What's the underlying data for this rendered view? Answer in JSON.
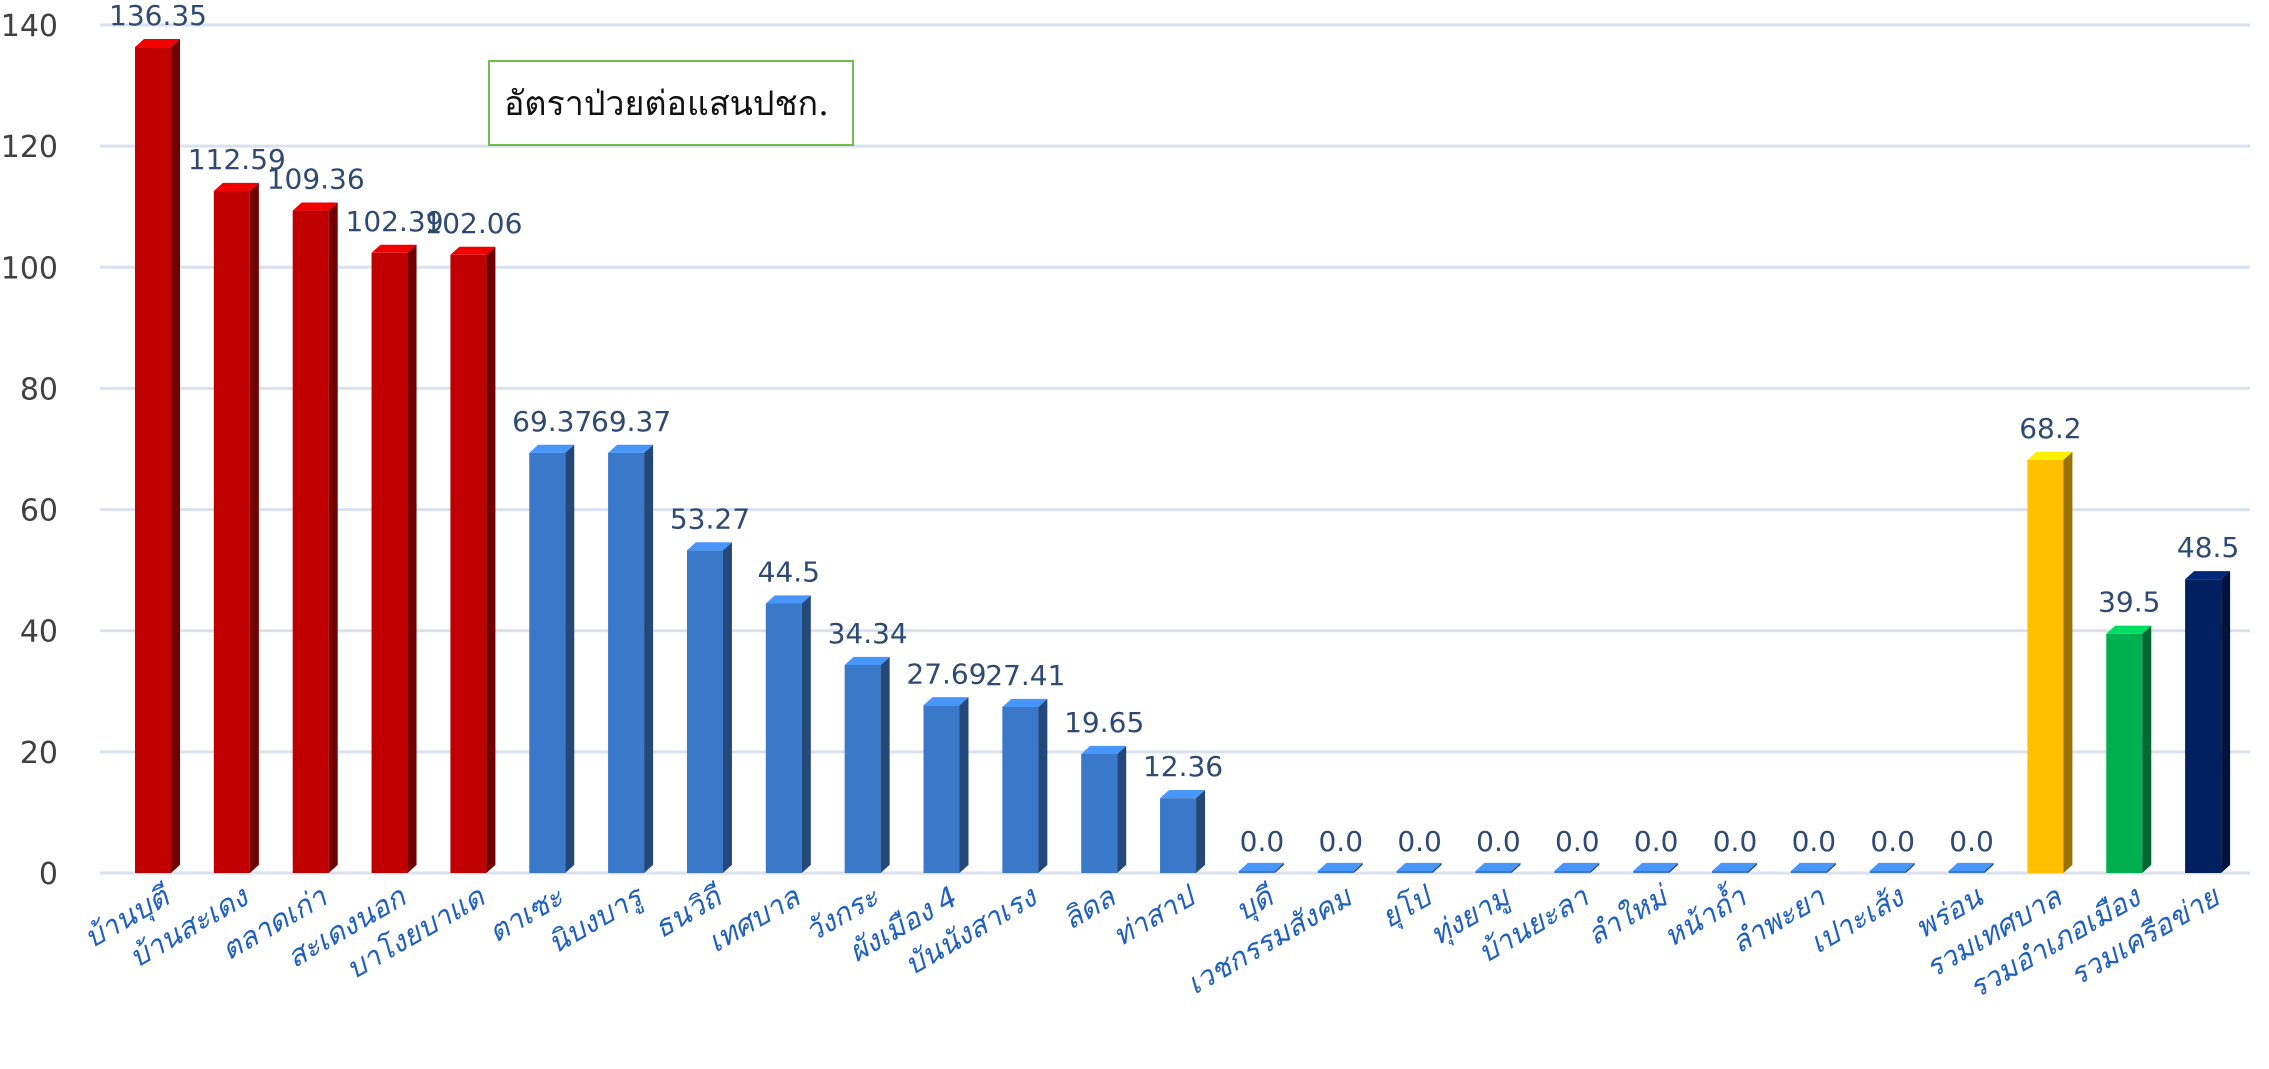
{
  "chart_data": {
    "type": "bar",
    "title": "",
    "annotation": "อัตราป่วยต่อแสนปชก.",
    "xlabel": "",
    "ylabel": "",
    "ylim": [
      0,
      140
    ],
    "yticks": [
      0,
      20,
      40,
      60,
      80,
      100,
      120,
      140
    ],
    "grid": true,
    "style": "3d",
    "categories": [
      "บ้านบุตี",
      "บ้านสะเดง",
      "ตลาดเก่า",
      "สะเดงนอก",
      "บาโงยบาแด",
      "ตาเซะ",
      "นิบงบารู",
      "ธนวิถี",
      "เทศบาล",
      "วังกระ",
      "ผังเมือง 4",
      "บันนังสาเรง",
      "ลิดล",
      "ท่าสาป",
      "บุดี",
      "เวชกรรมสังคม",
      "ยุโป",
      "ทุ่งยามู",
      "บ้านยะลา",
      "ลำใหม่",
      "หน้าถ้ำ",
      "ลำพะยา",
      "เปาะเส้ง",
      "พร่อน",
      "รวมเทศบาล",
      "รวมอำเภอเมือง",
      "รวมเครือข่าย"
    ],
    "values": [
      136.35,
      112.59,
      109.36,
      102.39,
      102.06,
      69.37,
      69.37,
      53.27,
      44.5,
      34.34,
      27.69,
      27.41,
      19.65,
      12.36,
      0.0,
      0.0,
      0.0,
      0.0,
      0.0,
      0.0,
      0.0,
      0.0,
      0.0,
      0.0,
      68.2,
      39.5,
      48.5
    ],
    "value_labels": [
      "136.35",
      "112.59",
      "109.36",
      "102.39",
      "102.06",
      "69.37",
      "69.37",
      "53.27",
      "44.5",
      "34.34",
      "27.69",
      "27.41",
      "19.65",
      "12.36",
      "0.0",
      "0.0",
      "0.0",
      "0.0",
      "0.0",
      "0.0",
      "0.0",
      "0.0",
      "0.0",
      "0.0",
      "68.2",
      "39.5",
      "48.5"
    ],
    "bar_colors": [
      "#c00000",
      "#c00000",
      "#c00000",
      "#c00000",
      "#c00000",
      "#3a78c9",
      "#3a78c9",
      "#3a78c9",
      "#3a78c9",
      "#3a78c9",
      "#3a78c9",
      "#3a78c9",
      "#3a78c9",
      "#3a78c9",
      "#3a78c9",
      "#3a78c9",
      "#3a78c9",
      "#3a78c9",
      "#3a78c9",
      "#3a78c9",
      "#3a78c9",
      "#3a78c9",
      "#3a78c9",
      "#3a78c9",
      "#ffc000",
      "#00b050",
      "#002060"
    ],
    "colors": {
      "grid": "#d9e1ee",
      "tick_label": "#404040",
      "data_label": "#2e4a73",
      "category_label": "#1f5fbf"
    }
  }
}
